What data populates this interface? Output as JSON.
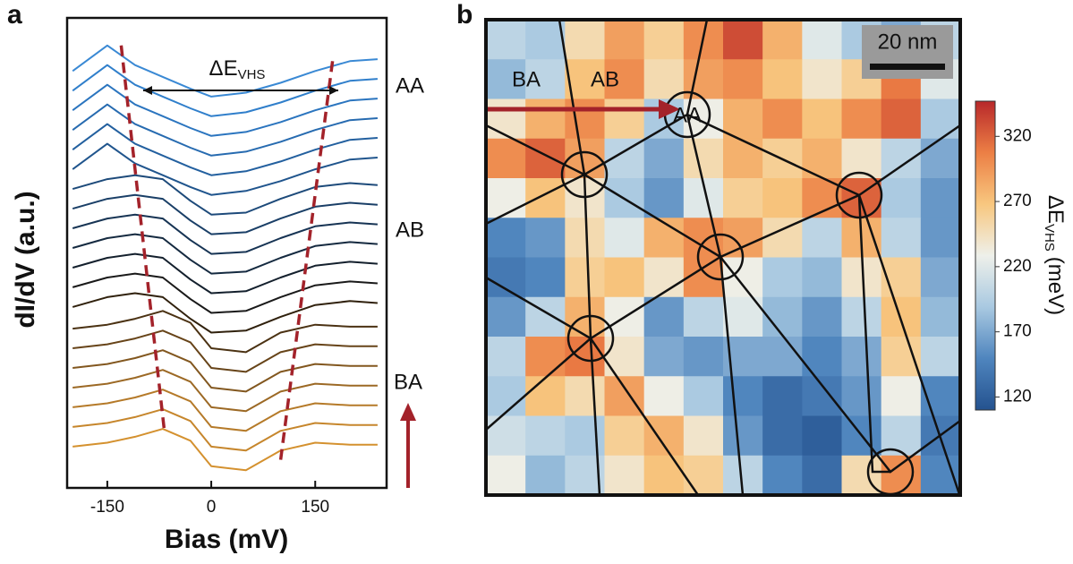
{
  "chart_data": [
    {
      "type": "line",
      "panel": "a",
      "xlabel": "Bias (mV)",
      "ylabel": "dI/dV (a.u.)",
      "xlim": [
        -208,
        253
      ],
      "xticks": [
        -150,
        0,
        150
      ],
      "ylim": [
        -1.9,
        22
      ],
      "annotation": {
        "text": "ΔE",
        "sub": "VHS"
      },
      "side_labels": [
        "AA",
        "AB",
        "BA"
      ],
      "guide_color": "#a3222a",
      "guides": [
        {
          "x": [
            -130,
            -68
          ],
          "y": [
            20.6,
            1.1
          ]
        },
        {
          "x": [
            175,
            100
          ],
          "y": [
            19.8,
            -0.5
          ]
        }
      ],
      "x": [
        -200,
        -150,
        -110,
        -70,
        -30,
        0,
        50,
        100,
        150,
        200,
        240
      ],
      "series": [
        {
          "color": "#d4912f",
          "values": [
            0.2,
            0.4,
            0.7,
            1.1,
            0.5,
            -0.8,
            -1.0,
            0.0,
            0.4,
            0.3,
            0.3
          ]
        },
        {
          "color": "#c6862c",
          "values": [
            1.2,
            1.4,
            1.7,
            2.1,
            1.5,
            0.2,
            0,
            1.0,
            1.4,
            1.3,
            1.3
          ]
        },
        {
          "color": "#b57a29",
          "values": [
            2.2,
            2.4,
            2.7,
            3.1,
            2.5,
            1.2,
            1,
            2,
            2.4,
            2.3,
            2.3
          ]
        },
        {
          "color": "#9c6925",
          "values": [
            3.2,
            3.4,
            3.7,
            4.1,
            3.5,
            2.2,
            2,
            3,
            3.4,
            3.3,
            3.3
          ]
        },
        {
          "color": "#82571f",
          "values": [
            4.2,
            4.4,
            4.7,
            5.1,
            4.5,
            3.2,
            3,
            4,
            4.4,
            4.3,
            4.3
          ]
        },
        {
          "color": "#674419",
          "values": [
            5.2,
            5.4,
            5.7,
            6.1,
            5.5,
            4.2,
            4,
            5,
            5.4,
            5.3,
            5.3
          ]
        },
        {
          "color": "#4b3213",
          "values": [
            6.2,
            6.4,
            6.7,
            7.1,
            6.5,
            5.2,
            5,
            6,
            6.4,
            6.3,
            6.3
          ]
        },
        {
          "color": "#30210d",
          "values": [
            7.3,
            7.8,
            8.0,
            7.8,
            6.7,
            6.0,
            6.1,
            6.8,
            7.4,
            7.6,
            7.5
          ]
        },
        {
          "color": "#1a1a1a",
          "values": [
            8.3,
            8.8,
            9,
            8.8,
            7.7,
            7,
            7.1,
            7.8,
            8.4,
            8.6,
            8.5
          ]
        },
        {
          "color": "#14202d",
          "values": [
            9.3,
            9.8,
            10,
            9.8,
            8.7,
            8,
            8.1,
            8.8,
            9.4,
            9.6,
            9.5
          ]
        },
        {
          "color": "#152a40",
          "values": [
            10.3,
            10.8,
            11,
            10.8,
            9.7,
            9,
            9.1,
            9.8,
            10.4,
            10.6,
            10.5
          ]
        },
        {
          "color": "#173454",
          "values": [
            11.3,
            11.8,
            12,
            11.8,
            10.7,
            10,
            10.1,
            10.8,
            11.4,
            11.6,
            11.5
          ]
        },
        {
          "color": "#1a3f67",
          "values": [
            12.3,
            12.8,
            13,
            12.8,
            11.7,
            11,
            11.1,
            11.8,
            12.4,
            12.6,
            12.5
          ]
        },
        {
          "color": "#1d4a7a",
          "values": [
            13.3,
            13.8,
            14,
            13.8,
            12.7,
            12,
            12.1,
            12.8,
            13.4,
            13.6,
            13.5
          ]
        },
        {
          "color": "#20558d",
          "values": [
            14.3,
            15.6,
            14.6,
            14,
            13.4,
            13,
            13.2,
            13.7,
            14.3,
            14.8,
            14.9
          ]
        },
        {
          "color": "#23609f",
          "values": [
            15.3,
            16.6,
            15.6,
            15,
            14.4,
            14,
            14.2,
            14.7,
            15.3,
            15.8,
            15.9
          ]
        },
        {
          "color": "#276bb0",
          "values": [
            16.3,
            17.6,
            16.6,
            16,
            15.4,
            15,
            15.2,
            15.7,
            16.3,
            16.8,
            16.9
          ]
        },
        {
          "color": "#2b75bf",
          "values": [
            17.3,
            18.6,
            17.6,
            17,
            16.4,
            16,
            16.2,
            16.7,
            17.3,
            17.8,
            17.9
          ]
        },
        {
          "color": "#307fcb",
          "values": [
            18.3,
            19.6,
            18.6,
            18,
            17.4,
            17,
            17.2,
            17.7,
            18.3,
            18.8,
            18.9
          ]
        },
        {
          "color": "#3a89d4",
          "values": [
            19.3,
            20.6,
            19.6,
            19,
            18.4,
            18,
            18.2,
            18.7,
            19.3,
            19.8,
            19.9
          ]
        }
      ]
    },
    {
      "type": "heatmap",
      "panel": "b",
      "scale_bar": "20 nm",
      "region_labels": [
        "BA",
        "AB",
        "AA"
      ],
      "clim": [
        110,
        347
      ],
      "cticks": [
        120,
        170,
        220,
        270,
        320
      ],
      "colorscale": [
        "#24528f",
        "#4f85be",
        "#a9c9e1",
        "#eef0ea",
        "#f8c77f",
        "#ec7f45",
        "#b8282a"
      ],
      "colorbar_label": {
        "text": "ΔE",
        "sub": "VHS",
        "unit": "(meV)"
      },
      "z": [
        [
          200,
          190,
          250,
          290,
          260,
          300,
          330,
          280,
          220,
          190,
          170,
          200
        ],
        [
          180,
          200,
          270,
          300,
          250,
          290,
          300,
          270,
          240,
          260,
          310,
          220
        ],
        [
          240,
          280,
          300,
          260,
          190,
          230,
          280,
          300,
          270,
          300,
          320,
          190
        ],
        [
          300,
          320,
          290,
          200,
          170,
          250,
          280,
          260,
          280,
          240,
          200,
          170
        ],
        [
          230,
          270,
          240,
          190,
          160,
          220,
          260,
          270,
          300,
          320,
          190,
          160
        ],
        [
          150,
          160,
          250,
          220,
          280,
          300,
          290,
          250,
          200,
          280,
          200,
          160
        ],
        [
          140,
          150,
          260,
          270,
          240,
          300,
          230,
          190,
          180,
          240,
          260,
          170
        ],
        [
          160,
          200,
          280,
          230,
          160,
          200,
          220,
          180,
          160,
          200,
          270,
          180
        ],
        [
          200,
          300,
          310,
          240,
          170,
          160,
          170,
          170,
          150,
          170,
          260,
          200
        ],
        [
          190,
          270,
          250,
          290,
          230,
          190,
          150,
          130,
          140,
          160,
          230,
          150
        ],
        [
          210,
          200,
          190,
          260,
          280,
          240,
          160,
          130,
          120,
          150,
          200,
          140
        ],
        [
          230,
          180,
          200,
          240,
          270,
          260,
          200,
          150,
          130,
          250,
          300,
          150
        ]
      ]
    }
  ]
}
